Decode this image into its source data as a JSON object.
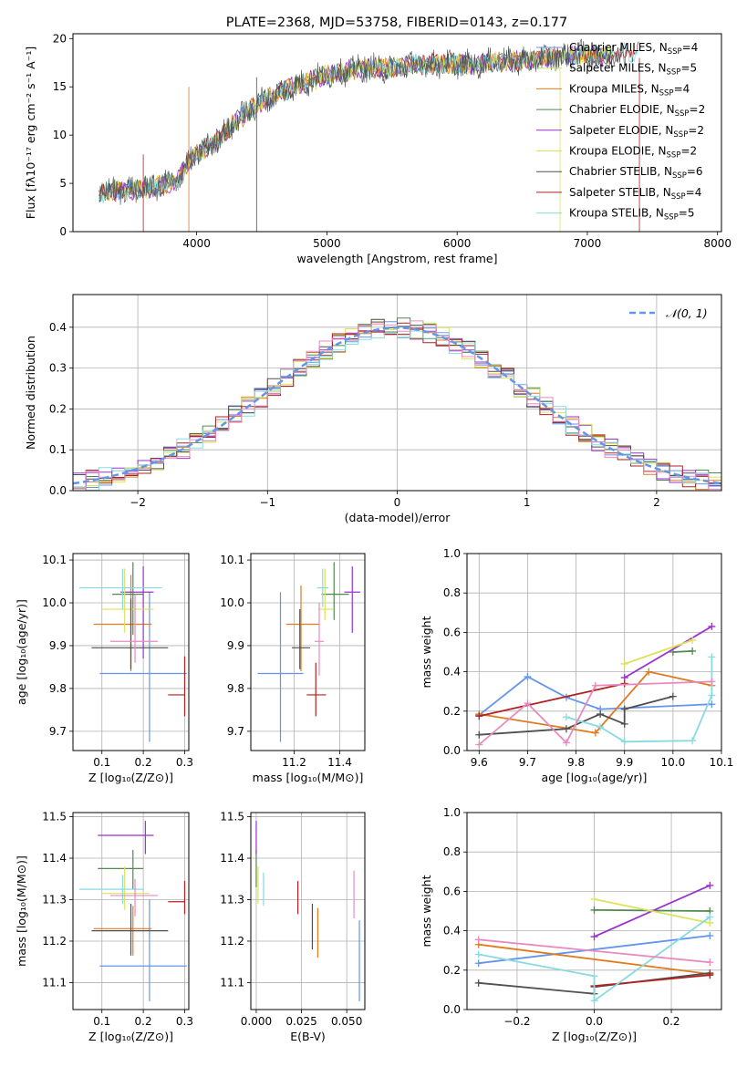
{
  "chart_data": [
    {
      "type": "line",
      "title": "PLATE=2368, MJD=53758, FIBERID=0143, z=0.177",
      "xlabel": "wavelength [Angstrom, rest frame]",
      "ylabel": "Flux [fλ10⁻¹⁷ erg cm⁻² s⁻¹ A⁻¹]",
      "xlim": [
        3050,
        8030
      ],
      "ylim": [
        0,
        20.5
      ],
      "xticks": [
        "4000",
        "5000",
        "6000",
        "7000",
        "8000"
      ],
      "yticks": [
        "0",
        "5",
        "10",
        "15",
        "20"
      ],
      "grid": false,
      "legend_position": "right",
      "legend": [
        {
          "base": "Chabrier MILES, N",
          "sub": "SSP",
          "tail": "=4",
          "color": "#6495ed"
        },
        {
          "base": "Salpeter MILES, N",
          "sub": "SSP",
          "tail": "=5",
          "color": "#bcee68"
        },
        {
          "base": "Kroupa MILES, N",
          "sub": "SSP",
          "tail": "=4",
          "color": "#e07b20"
        },
        {
          "base": "Chabrier ELODIE, N",
          "sub": "SSP",
          "tail": "=2",
          "color": "#4f8a4f"
        },
        {
          "base": "Salpeter ELODIE, N",
          "sub": "SSP",
          "tail": "=2",
          "color": "#9932cc"
        },
        {
          "base": "Kroupa ELODIE, N",
          "sub": "SSP",
          "tail": "=2",
          "color": "#dde25a"
        },
        {
          "base": "Chabrier STELIB, N",
          "sub": "SSP",
          "tail": "=6",
          "color": "#505050"
        },
        {
          "base": "Salpeter STELIB, N",
          "sub": "SSP",
          "tail": "=4",
          "color": "#b22222"
        },
        {
          "base": "Kroupa STELIB, N",
          "sub": "SSP",
          "tail": "=5",
          "color": "#87dbe0"
        }
      ],
      "spectrum_envelope": {
        "x": [
          3250,
          3400,
          3550,
          3700,
          3850,
          3950,
          4050,
          4200,
          4350,
          4500,
          4650,
          4800,
          4950,
          5100,
          5300,
          5500,
          5700,
          5900,
          6100,
          6300,
          6500,
          6700,
          6900,
          7100,
          7300,
          7450
        ],
        "y": [
          4.0,
          4.3,
          4.4,
          4.7,
          5.2,
          7.5,
          8.4,
          10.0,
          12.0,
          13.5,
          14.5,
          15.3,
          16.0,
          16.5,
          17.0,
          16.9,
          17.3,
          17.4,
          17.3,
          17.6,
          17.7,
          18.0,
          18.3,
          18.2,
          18.5,
          18.8
        ]
      }
    },
    {
      "type": "line",
      "title": "",
      "xlabel": "(data-model)/error",
      "ylabel": "Normed distribution",
      "xlim": [
        -2.5,
        2.5
      ],
      "ylim": [
        0,
        0.48
      ],
      "xticks": [
        "−2",
        "−1",
        "0",
        "1",
        "2"
      ],
      "yticks": [
        "0.0",
        "0.1",
        "0.2",
        "0.3",
        "0.4"
      ],
      "grid": true,
      "legend_position": "top-right",
      "legend": [
        {
          "label": "𝒩(0, 1)",
          "color": "#6495ed",
          "style": "dashed"
        }
      ],
      "histogram_bin_width": 0.1,
      "series_colors": [
        "#6495ed",
        "#e07b20",
        "#4f8a4f",
        "#9932cc",
        "#dde25a",
        "#505050",
        "#b22222",
        "#87dbe0",
        "#e88ac0"
      ]
    },
    {
      "type": "scatter",
      "xlabel": "Z [log₁₀(Z/Z⊙)]",
      "ylabel": "age [log₁₀(age/yr)]",
      "xlim": [
        0.03,
        0.31
      ],
      "ylim": [
        9.655,
        10.115
      ],
      "xticks": [
        "0.1",
        "0.2",
        "0.3"
      ],
      "yticks": [
        "9.7",
        "9.8",
        "9.9",
        "10.0",
        "10.1"
      ],
      "grid": true,
      "points": [
        {
          "color": "#6495ed",
          "x": 0.215,
          "xerr": [
            0.095,
            0.305
          ],
          "y": 9.835,
          "yerr": [
            9.675,
            10.025
          ]
        },
        {
          "color": "#e07b20",
          "x": 0.17,
          "xerr": [
            0.08,
            0.22
          ],
          "y": 9.95,
          "yerr": [
            9.84,
            10.065
          ]
        },
        {
          "color": "#4f8a4f",
          "x": 0.175,
          "xerr": [
            0.125,
            0.2
          ],
          "y": 10.02,
          "yerr": [
            9.925,
            10.095
          ]
        },
        {
          "color": "#9932cc",
          "x": 0.2,
          "xerr": [
            0.145,
            0.225
          ],
          "y": 10.025,
          "yerr": [
            9.87,
            10.085
          ]
        },
        {
          "color": "#dde25a",
          "x": 0.155,
          "xerr": [
            0.1,
            0.225
          ],
          "y": 9.985,
          "yerr": [
            9.93,
            10.08
          ]
        },
        {
          "color": "#505050",
          "x": 0.17,
          "xerr": [
            0.075,
            0.26
          ],
          "y": 9.895,
          "yerr": [
            9.845,
            10.01
          ]
        },
        {
          "color": "#b22222",
          "x": 0.3,
          "xerr": [
            0.26,
            0.3
          ],
          "y": 9.785,
          "yerr": [
            9.735,
            9.875
          ]
        },
        {
          "color": "#87dbe0",
          "x": 0.15,
          "xerr": [
            0.045,
            0.245
          ],
          "y": 10.035,
          "yerr": [
            9.985,
            10.08
          ]
        },
        {
          "color": "#e88ac0",
          "x": 0.18,
          "xerr": [
            0.12,
            0.235
          ],
          "y": 9.91,
          "yerr": [
            9.86,
            10.02
          ]
        }
      ]
    },
    {
      "type": "scatter",
      "xlabel": "mass [log₁₀(M/M⊙)]",
      "ylabel": "",
      "xlim": [
        11.01,
        11.51
      ],
      "ylim": [
        9.655,
        10.115
      ],
      "xticks": [
        "11.2",
        "11.4"
      ],
      "yticks": [
        "9.7",
        "9.8",
        "9.9",
        "10.0",
        "10.1"
      ],
      "grid": true,
      "points": [
        {
          "color": "#6495ed",
          "x": 11.14,
          "xerr": [
            11.04,
            11.24
          ],
          "y": 9.835,
          "yerr": [
            9.675,
            10.025
          ]
        },
        {
          "color": "#e07b20",
          "x": 11.23,
          "xerr": [
            11.165,
            11.31
          ],
          "y": 9.95,
          "yerr": [
            9.84,
            10.04
          ]
        },
        {
          "color": "#4f8a4f",
          "x": 11.375,
          "xerr": [
            11.32,
            11.44
          ],
          "y": 10.02,
          "yerr": [
            9.96,
            10.095
          ]
        },
        {
          "color": "#9932cc",
          "x": 11.455,
          "xerr": [
            11.42,
            11.49
          ],
          "y": 10.025,
          "yerr": [
            9.93,
            10.085
          ]
        },
        {
          "color": "#dde25a",
          "x": 11.335,
          "xerr": [
            11.305,
            11.37
          ],
          "y": 9.985,
          "yerr": [
            9.96,
            10.08
          ]
        },
        {
          "color": "#505050",
          "x": 11.225,
          "xerr": [
            11.19,
            11.27
          ],
          "y": 9.895,
          "yerr": [
            9.845,
            9.985
          ]
        },
        {
          "color": "#b22222",
          "x": 11.295,
          "xerr": [
            11.255,
            11.34
          ],
          "y": 9.785,
          "yerr": [
            9.735,
            9.86
          ]
        },
        {
          "color": "#87dbe0",
          "x": 11.325,
          "xerr": [
            11.3,
            11.35
          ],
          "y": 10.035,
          "yerr": [
            9.99,
            10.08
          ]
        },
        {
          "color": "#e88ac0",
          "x": 11.31,
          "xerr": [
            11.29,
            11.33
          ],
          "y": 9.91,
          "yerr": [
            9.83,
            10.0
          ]
        }
      ]
    },
    {
      "type": "line",
      "xlabel": "age  [log₁₀(age/yr)]",
      "ylabel": "mass weight",
      "xlim": [
        9.575,
        10.1
      ],
      "ylim": [
        0,
        1
      ],
      "xticks": [
        "9.6",
        "9.7",
        "9.8",
        "9.9",
        "10.0",
        "10.1"
      ],
      "yticks": [
        "0.0",
        "0.2",
        "0.4",
        "0.6",
        "0.8",
        "1.0"
      ],
      "grid": true,
      "series": [
        {
          "color": "#6495ed",
          "x": [
            9.6,
            9.7,
            9.78,
            9.85,
            10.08
          ],
          "values": [
            0.18,
            0.375,
            0.27,
            0.21,
            0.235
          ]
        },
        {
          "color": "#e07b20",
          "x": [
            9.6,
            9.84,
            9.95,
            10.08
          ],
          "values": [
            0.185,
            0.09,
            0.4,
            0.33
          ]
        },
        {
          "color": "#4f8a4f",
          "x": [
            10.0,
            10.04
          ],
          "values": [
            0.5,
            0.505
          ]
        },
        {
          "color": "#9932cc",
          "x": [
            9.9,
            10.08
          ],
          "values": [
            0.37,
            0.63
          ]
        },
        {
          "color": "#dde25a",
          "x": [
            9.9,
            10.04
          ],
          "values": [
            0.44,
            0.56
          ]
        },
        {
          "color": "#505050",
          "x": [
            9.6,
            9.78,
            9.85,
            9.9,
            9.9,
            10.0
          ],
          "values": [
            0.08,
            0.11,
            0.185,
            0.135,
            0.21,
            0.275
          ]
        },
        {
          "color": "#b22222",
          "x": [
            9.6,
            9.9
          ],
          "values": [
            0.175,
            0.34
          ]
        },
        {
          "color": "#87dbe0",
          "x": [
            9.78,
            9.85,
            9.9,
            10.04,
            10.08,
            10.08
          ],
          "values": [
            0.17,
            0.12,
            0.045,
            0.05,
            0.28,
            0.475
          ]
        },
        {
          "color": "#e88ac0",
          "x": [
            9.6,
            9.7,
            9.78,
            9.84,
            10.08
          ],
          "values": [
            0.03,
            0.24,
            0.04,
            0.33,
            0.35
          ]
        }
      ]
    },
    {
      "type": "scatter",
      "xlabel": "Z [log₁₀(Z/Z⊙)]",
      "ylabel": "mass [log₁₀(M/M⊙)]",
      "xlim": [
        0.03,
        0.31
      ],
      "ylim": [
        11.035,
        11.51
      ],
      "xticks": [
        "0.1",
        "0.2",
        "0.3"
      ],
      "yticks": [
        "11.1",
        "11.2",
        "11.3",
        "11.4",
        "11.5"
      ],
      "grid": true,
      "points": [
        {
          "color": "#6495ed",
          "x": 0.215,
          "xerr": [
            0.095,
            0.305
          ],
          "y": 11.14,
          "yerr": [
            11.055,
            11.3
          ]
        },
        {
          "color": "#e07b20",
          "x": 0.175,
          "xerr": [
            0.08,
            0.22
          ],
          "y": 11.23,
          "yerr": [
            11.165,
            11.285
          ]
        },
        {
          "color": "#4f8a4f",
          "x": 0.175,
          "xerr": [
            0.09,
            0.2
          ],
          "y": 11.375,
          "yerr": [
            11.325,
            11.42
          ]
        },
        {
          "color": "#9932cc",
          "x": 0.205,
          "xerr": [
            0.09,
            0.225
          ],
          "y": 11.455,
          "yerr": [
            11.41,
            11.49
          ]
        },
        {
          "color": "#dde25a",
          "x": 0.155,
          "xerr": [
            0.1,
            0.215
          ],
          "y": 11.315,
          "yerr": [
            11.275,
            11.38
          ]
        },
        {
          "color": "#505050",
          "x": 0.17,
          "xerr": [
            0.075,
            0.26
          ],
          "y": 11.225,
          "yerr": [
            11.165,
            11.29
          ]
        },
        {
          "color": "#b22222",
          "x": 0.3,
          "xerr": [
            0.26,
            0.3
          ],
          "y": 11.295,
          "yerr": [
            11.265,
            11.345
          ]
        },
        {
          "color": "#87dbe0",
          "x": 0.15,
          "xerr": [
            0.045,
            0.2
          ],
          "y": 11.325,
          "yerr": [
            11.29,
            11.36
          ]
        },
        {
          "color": "#e88ac0",
          "x": 0.18,
          "xerr": [
            0.12,
            0.235
          ],
          "y": 11.31,
          "yerr": [
            11.26,
            11.35
          ]
        }
      ]
    },
    {
      "type": "scatter",
      "xlabel": "E(B-V)",
      "ylabel": "",
      "xlim": [
        -0.003,
        0.06
      ],
      "ylim": [
        11.035,
        11.51
      ],
      "xticks": [
        "0.000",
        "0.025",
        "0.050"
      ],
      "yticks": [
        "11.1",
        "11.2",
        "11.3",
        "11.4",
        "11.5"
      ],
      "grid": true,
      "points": [
        {
          "color": "#6495ed",
          "x": 0.057,
          "y": 11.14,
          "yerr": [
            11.055,
            11.25
          ]
        },
        {
          "color": "#e07b20",
          "x": 0.034,
          "y": 11.22,
          "yerr": [
            11.16,
            11.28
          ]
        },
        {
          "color": "#4f8a4f",
          "x": 0.0,
          "y": 11.375,
          "yerr": [
            11.33,
            11.42
          ]
        },
        {
          "color": "#9932cc",
          "x": 0.0,
          "y": 11.455,
          "yerr": [
            11.41,
            11.49
          ]
        },
        {
          "color": "#dde25a",
          "x": 0.001,
          "y": 11.33,
          "yerr": [
            11.29,
            11.38
          ]
        },
        {
          "color": "#505050",
          "x": 0.031,
          "y": 11.235,
          "yerr": [
            11.18,
            11.29
          ]
        },
        {
          "color": "#b22222",
          "x": 0.023,
          "y": 11.305,
          "yerr": [
            11.265,
            11.345
          ]
        },
        {
          "color": "#87dbe0",
          "x": 0.004,
          "y": 11.325,
          "yerr": [
            11.285,
            11.365
          ]
        },
        {
          "color": "#e88ac0",
          "x": 0.054,
          "y": 11.31,
          "yerr": [
            11.255,
            11.37
          ]
        }
      ]
    },
    {
      "type": "line",
      "xlabel": "Z [log₁₀(Z/Z⊙)]",
      "ylabel": "mass weight",
      "xlim": [
        -0.33,
        0.33
      ],
      "ylim": [
        0,
        1
      ],
      "xticks": [
        "−0.2",
        "0.0",
        "0.2"
      ],
      "yticks": [
        "0.0",
        "0.2",
        "0.4",
        "0.6",
        "0.8",
        "1.0"
      ],
      "grid": true,
      "series": [
        {
          "color": "#6495ed",
          "x": [
            -0.3,
            0.3
          ],
          "values": [
            0.235,
            0.375
          ]
        },
        {
          "color": "#e07b20",
          "x": [
            -0.3,
            0.3
          ],
          "values": [
            0.33,
            0.18
          ]
        },
        {
          "color": "#4f8a4f",
          "x": [
            0.0,
            0.3
          ],
          "values": [
            0.505,
            0.5
          ]
        },
        {
          "color": "#9932cc",
          "x": [
            0.0,
            0.3
          ],
          "values": [
            0.37,
            0.63
          ]
        },
        {
          "color": "#dde25a",
          "x": [
            0.0,
            0.3
          ],
          "values": [
            0.56,
            0.44
          ]
        },
        {
          "color": "#505050",
          "x": [
            -0.3,
            0.0,
            0.0,
            0.3
          ],
          "values": [
            0.135,
            0.08,
            0.115,
            0.185
          ]
        },
        {
          "color": "#b22222",
          "x": [
            0.0,
            0.3
          ],
          "values": [
            0.12,
            0.175
          ]
        },
        {
          "color": "#87dbe0",
          "x": [
            -0.3,
            0.0,
            0.0,
            0.3
          ],
          "values": [
            0.28,
            0.17,
            0.045,
            0.47
          ]
        },
        {
          "color": "#e88ac0",
          "x": [
            -0.3,
            0.3
          ],
          "values": [
            0.355,
            0.24
          ]
        }
      ]
    }
  ]
}
